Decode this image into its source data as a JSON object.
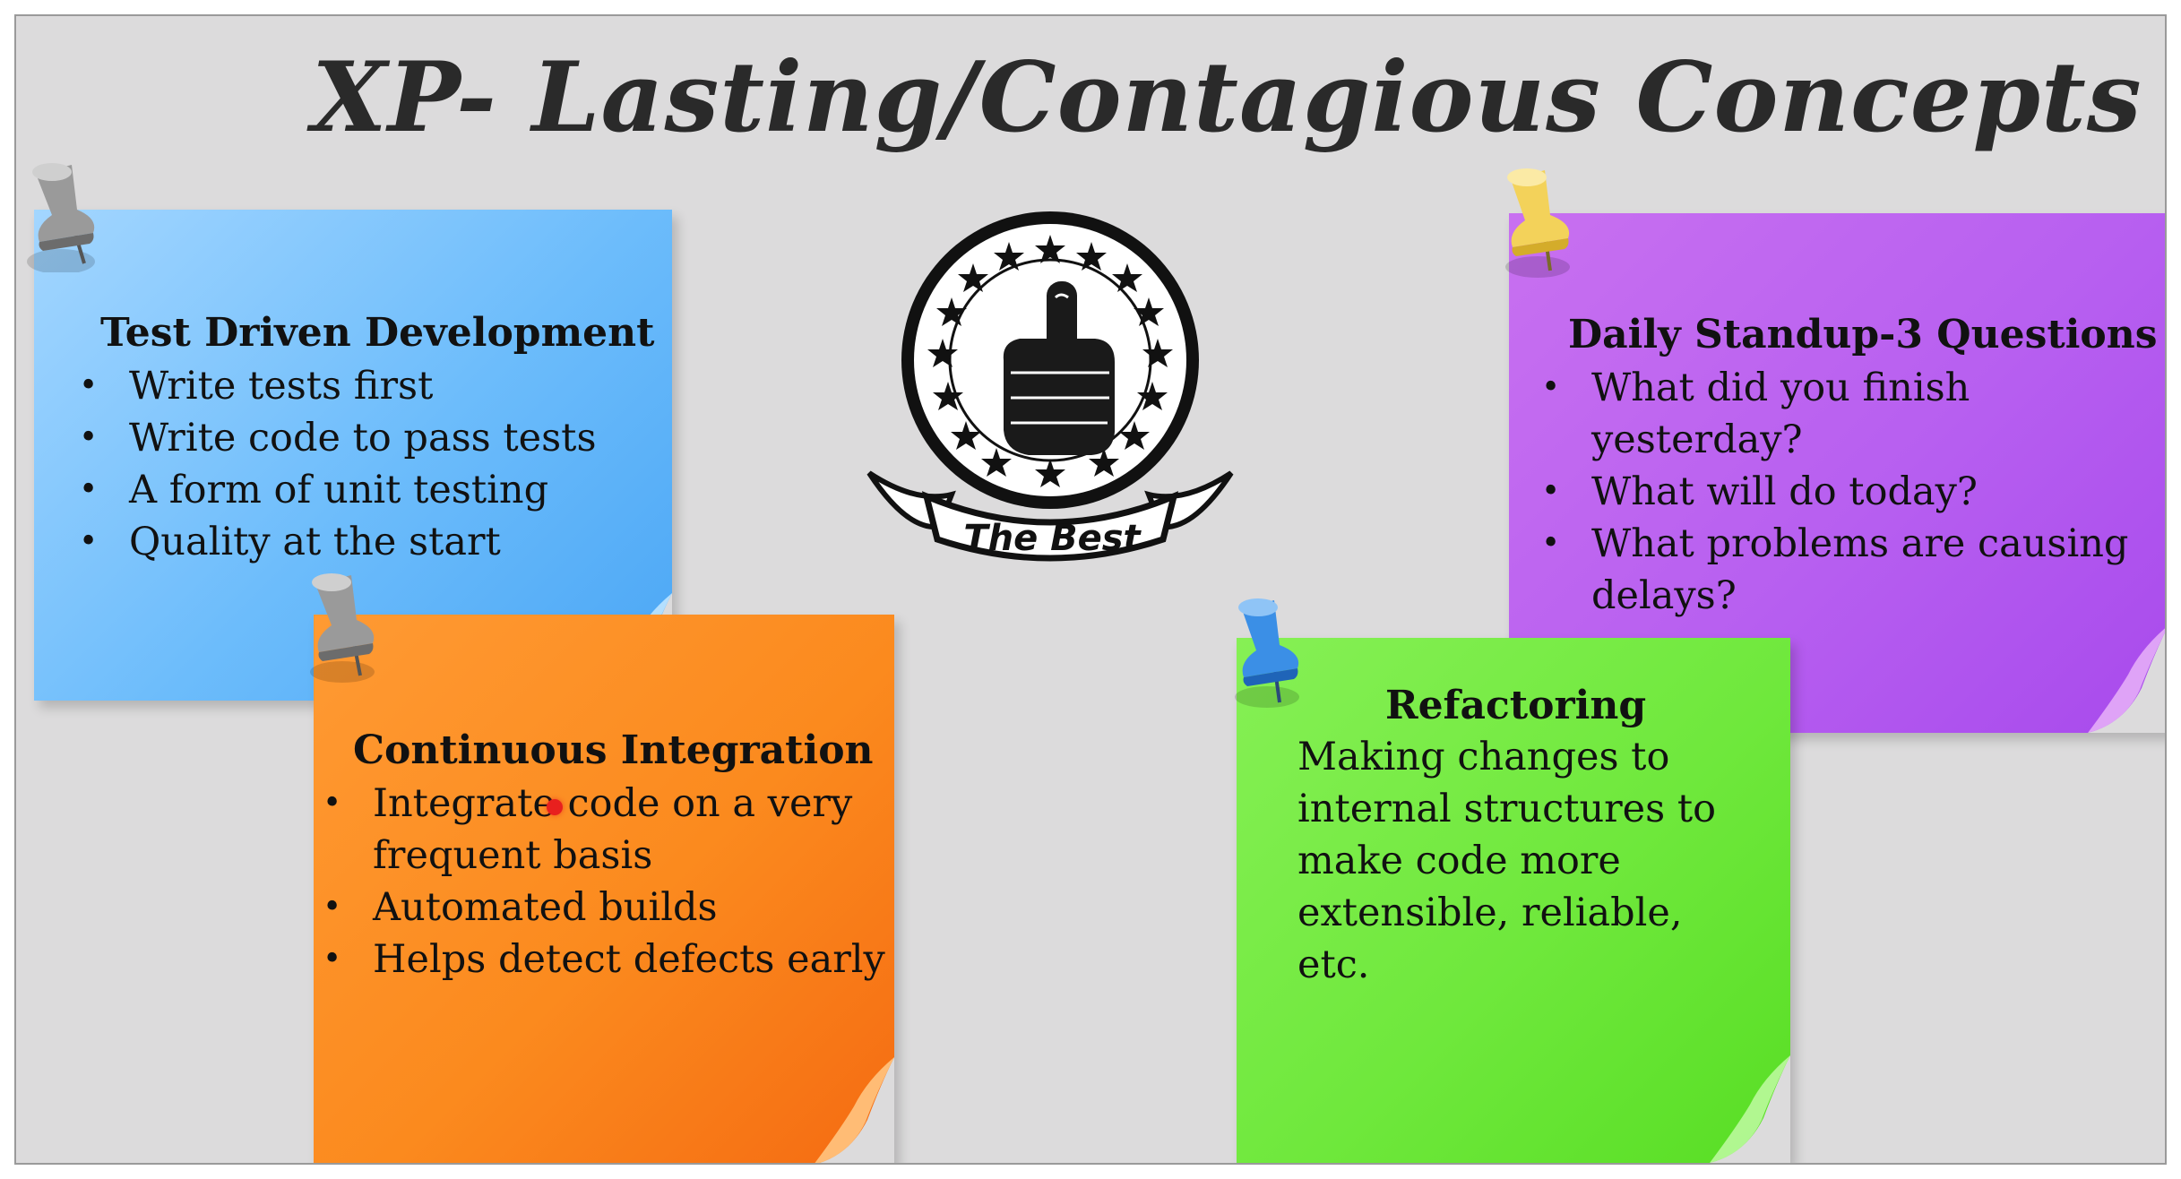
{
  "slide": {
    "title": "XP- Lasting/Contagious Concepts"
  },
  "logo": {
    "icon": "thumbs-up-badge-icon",
    "banner_text": "The Best"
  },
  "notes": {
    "tdd": {
      "title": "Test Driven Development",
      "color": "#6cbcfb",
      "items": [
        "Write tests first",
        "Write code to pass tests",
        "A form of unit testing",
        "Quality at the start"
      ]
    },
    "ci": {
      "title": "Continuous Integration",
      "color": "#fb8a1e",
      "items": [
        "Integrate code on a very frequent basis",
        "Automated builds",
        "Helps detect defects early"
      ],
      "item0_line1": "Integrate code on a very",
      "item0_line2": "frequent basis"
    },
    "standup": {
      "title": "Daily Standup-3 Questions",
      "color": "#b75ff0",
      "items": [
        "What did you finish yesterday?",
        "What will do today?",
        "What problems are causing delays?"
      ],
      "item2_line1": "What problems are causing",
      "item2_line2": "delays?"
    },
    "refactoring": {
      "title": "Refactoring",
      "color": "#6fe83c",
      "lines": [
        "Making changes to",
        "internal structures to",
        "make code more",
        "extensible, reliable,",
        "etc."
      ]
    }
  },
  "pins": {
    "tdd": "#8a8a8a",
    "ci": "#8a8a8a",
    "standup": "#f3d25a",
    "refactoring": "#3b8fe6"
  }
}
